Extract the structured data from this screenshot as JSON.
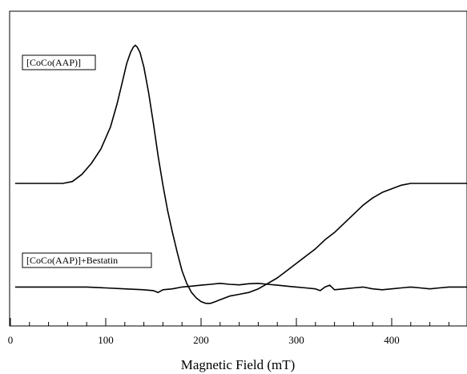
{
  "chart_data": {
    "type": "line",
    "title": "",
    "xlabel": "Magnetic Field (mT)",
    "ylabel": "",
    "xlim": [
      0,
      480
    ],
    "ylim": [
      -1.0,
      1.0
    ],
    "x_major_ticks": [
      0,
      100,
      200,
      300,
      400
    ],
    "x_tick_labels": [
      "0",
      "100",
      "200",
      "300",
      "400"
    ],
    "x_minor_tick_step": 20,
    "grid": false,
    "series": [
      {
        "name": "[CoCo(AAP)]",
        "baseline": 0.0,
        "x": [
          5,
          20,
          40,
          55,
          65,
          75,
          85,
          95,
          105,
          112,
          118,
          122,
          126,
          129,
          131,
          133,
          136,
          140,
          145,
          150,
          155,
          160,
          165,
          170,
          175,
          180,
          185,
          190,
          195,
          200,
          205,
          210,
          215,
          220,
          230,
          240,
          250,
          260,
          270,
          280,
          290,
          300,
          310,
          320,
          330,
          340,
          350,
          360,
          370,
          380,
          390,
          400,
          410,
          420,
          430,
          440,
          450,
          460,
          470,
          480
        ],
        "y": [
          0.0,
          0.0,
          0.0,
          0.0,
          0.01,
          0.05,
          0.11,
          0.19,
          0.31,
          0.44,
          0.57,
          0.66,
          0.72,
          0.75,
          0.76,
          0.75,
          0.72,
          0.64,
          0.5,
          0.33,
          0.15,
          -0.01,
          -0.15,
          -0.27,
          -0.38,
          -0.48,
          -0.55,
          -0.6,
          -0.63,
          -0.65,
          -0.66,
          -0.66,
          -0.65,
          -0.64,
          -0.62,
          -0.61,
          -0.6,
          -0.58,
          -0.55,
          -0.52,
          -0.48,
          -0.44,
          -0.4,
          -0.36,
          -0.31,
          -0.27,
          -0.22,
          -0.17,
          -0.12,
          -0.08,
          -0.05,
          -0.03,
          -0.01,
          0.0,
          0.0,
          0.0,
          0.0,
          0.0,
          0.0,
          0.0
        ]
      },
      {
        "name": "[CoCo(AAP)]+Bestatin",
        "baseline": -0.57,
        "x": [
          5,
          20,
          40,
          60,
          80,
          100,
          120,
          140,
          150,
          155,
          160,
          170,
          180,
          190,
          200,
          210,
          220,
          230,
          240,
          250,
          260,
          270,
          280,
          290,
          300,
          310,
          320,
          325,
          330,
          335,
          340,
          350,
          360,
          370,
          380,
          390,
          400,
          410,
          420,
          430,
          440,
          450,
          460,
          470,
          480
        ],
        "y": [
          0.0,
          0.0,
          0.0,
          0.0,
          0.0,
          -0.005,
          -0.01,
          -0.015,
          -0.02,
          -0.03,
          -0.015,
          -0.01,
          0.0,
          0.005,
          0.01,
          0.015,
          0.02,
          0.015,
          0.012,
          0.018,
          0.02,
          0.015,
          0.01,
          0.005,
          0.0,
          -0.005,
          -0.01,
          -0.02,
          0.0,
          0.01,
          -0.015,
          -0.01,
          -0.005,
          0.0,
          -0.01,
          -0.015,
          -0.01,
          -0.005,
          0.0,
          -0.005,
          -0.01,
          -0.005,
          0.0,
          0.0,
          0.0
        ]
      }
    ],
    "legend": [
      {
        "label": "[CoCo(AAP)]",
        "placement": "top-left"
      },
      {
        "label": "[CoCo(AAP)]+Bestatin",
        "placement": "middle-left"
      }
    ]
  }
}
